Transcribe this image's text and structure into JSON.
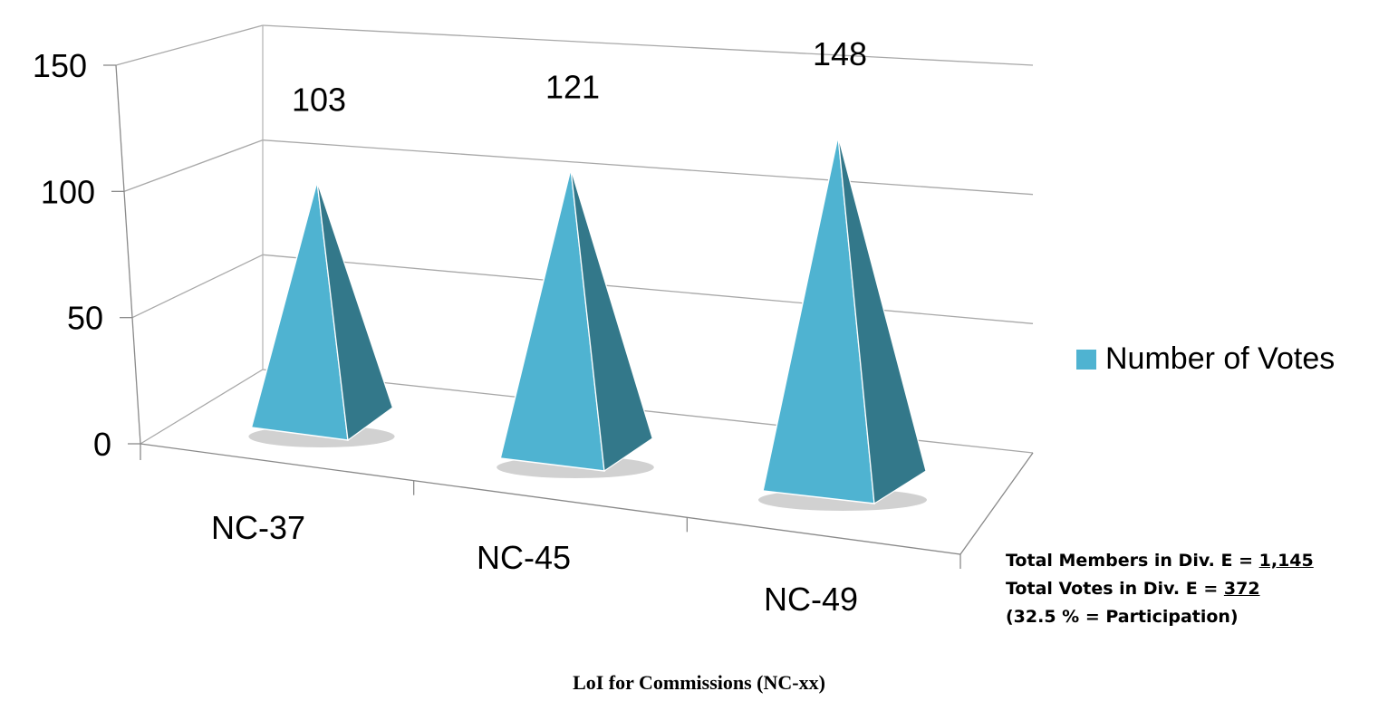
{
  "chart_data": {
    "type": "bar",
    "style": "3d-pyramid",
    "categories": [
      "NC-37",
      "NC-45",
      "NC-49"
    ],
    "series": [
      {
        "name": "Number of Votes",
        "values": [
          103,
          121,
          148
        ],
        "color": "#4FB3D1"
      }
    ],
    "data_labels": [
      "103",
      "121",
      "148"
    ],
    "yticks": [
      "0",
      "50",
      "100",
      "150"
    ],
    "ylim": [
      0,
      150
    ],
    "grid": true,
    "legend_position": "right",
    "colors": {
      "front": "#4FB3D1",
      "side": "#33788A"
    }
  },
  "notes": {
    "line1_prefix": "Total Members in Div. E = ",
    "line1_value": "1,145",
    "line2_prefix": "Total Votes in Div. E = ",
    "line2_value": "372",
    "line3": "(32.5 % = Participation)"
  },
  "caption": "LoI for Commissions (NC-xx)"
}
